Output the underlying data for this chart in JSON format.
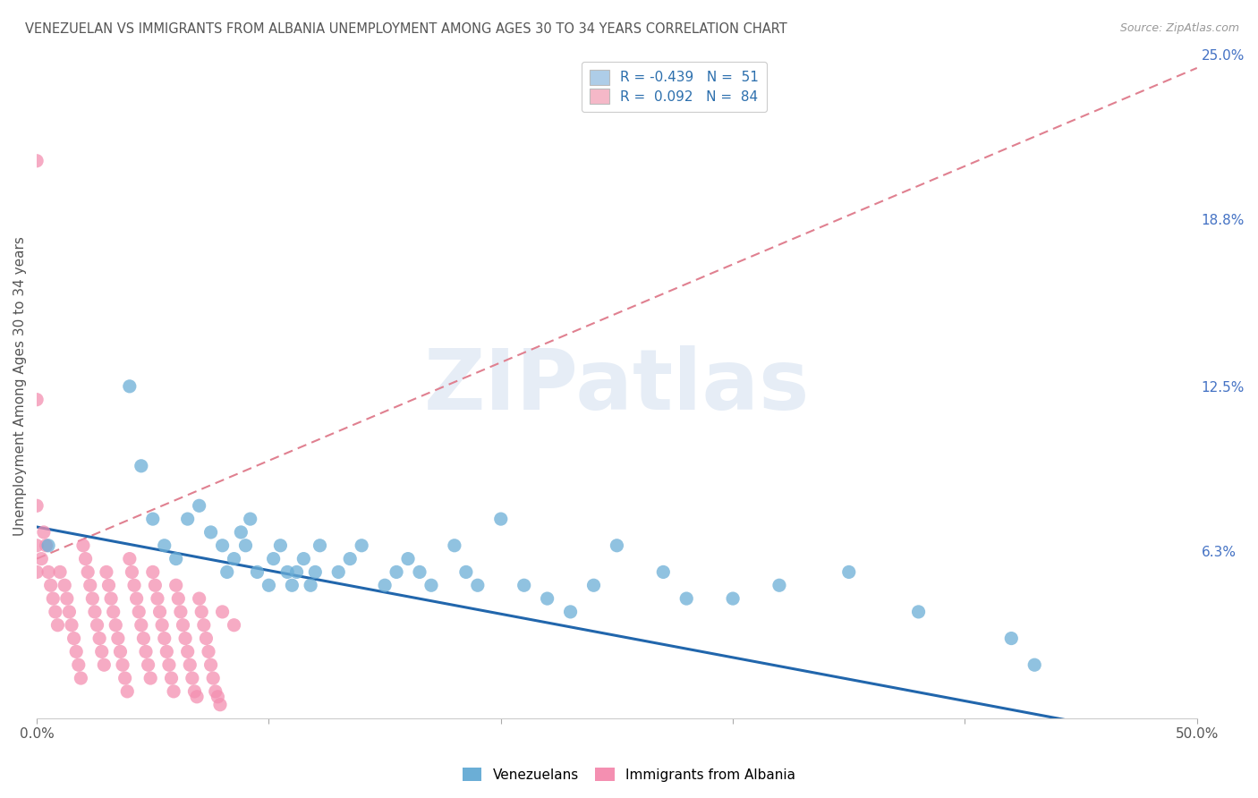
{
  "title": "VENEZUELAN VS IMMIGRANTS FROM ALBANIA UNEMPLOYMENT AMONG AGES 30 TO 34 YEARS CORRELATION CHART",
  "source": "Source: ZipAtlas.com",
  "ylabel": "Unemployment Among Ages 30 to 34 years",
  "xlim": [
    0.0,
    0.5
  ],
  "ylim": [
    0.0,
    0.25
  ],
  "xtick_labels": [
    "0.0%",
    "",
    "",
    "",
    "",
    "50.0%"
  ],
  "xtick_values": [
    0.0,
    0.1,
    0.2,
    0.3,
    0.4,
    0.5
  ],
  "ytick_right_labels": [
    "25.0%",
    "18.8%",
    "12.5%",
    "6.3%",
    ""
  ],
  "ytick_right_values": [
    0.25,
    0.188,
    0.125,
    0.063,
    0.0
  ],
  "watermark_text": "ZIPatlas",
  "legend_label_blue": "R = -0.439   N =  51",
  "legend_label_pink": "R =  0.092   N =  84",
  "legend_color_blue": "#aecde8",
  "legend_color_pink": "#f5b8c8",
  "venezuelan_color": "#6baed6",
  "albania_color": "#f48fb1",
  "venezuela_trend_color": "#2166ac",
  "albania_trend_color": "#e08090",
  "background_color": "#ffffff",
  "grid_color": "#cccccc",
  "title_color": "#555555",
  "right_tick_color": "#4472c4",
  "venezuelan_x": [
    0.005,
    0.04,
    0.045,
    0.05,
    0.055,
    0.06,
    0.065,
    0.07,
    0.075,
    0.08,
    0.082,
    0.085,
    0.088,
    0.09,
    0.092,
    0.095,
    0.1,
    0.102,
    0.105,
    0.108,
    0.11,
    0.112,
    0.115,
    0.118,
    0.12,
    0.122,
    0.13,
    0.135,
    0.14,
    0.15,
    0.155,
    0.16,
    0.165,
    0.17,
    0.18,
    0.185,
    0.19,
    0.2,
    0.21,
    0.22,
    0.23,
    0.24,
    0.25,
    0.27,
    0.28,
    0.3,
    0.32,
    0.35,
    0.38,
    0.42,
    0.43
  ],
  "venezuelan_y": [
    0.065,
    0.125,
    0.095,
    0.075,
    0.065,
    0.06,
    0.075,
    0.08,
    0.07,
    0.065,
    0.055,
    0.06,
    0.07,
    0.065,
    0.075,
    0.055,
    0.05,
    0.06,
    0.065,
    0.055,
    0.05,
    0.055,
    0.06,
    0.05,
    0.055,
    0.065,
    0.055,
    0.06,
    0.065,
    0.05,
    0.055,
    0.06,
    0.055,
    0.05,
    0.065,
    0.055,
    0.05,
    0.075,
    0.05,
    0.045,
    0.04,
    0.05,
    0.065,
    0.055,
    0.045,
    0.045,
    0.05,
    0.055,
    0.04,
    0.03,
    0.02
  ],
  "albania_x": [
    0.0,
    0.0,
    0.0,
    0.0,
    0.0,
    0.002,
    0.003,
    0.004,
    0.005,
    0.006,
    0.007,
    0.008,
    0.009,
    0.01,
    0.012,
    0.013,
    0.014,
    0.015,
    0.016,
    0.017,
    0.018,
    0.019,
    0.02,
    0.021,
    0.022,
    0.023,
    0.024,
    0.025,
    0.026,
    0.027,
    0.028,
    0.029,
    0.03,
    0.031,
    0.032,
    0.033,
    0.034,
    0.035,
    0.036,
    0.037,
    0.038,
    0.039,
    0.04,
    0.041,
    0.042,
    0.043,
    0.044,
    0.045,
    0.046,
    0.047,
    0.048,
    0.049,
    0.05,
    0.051,
    0.052,
    0.053,
    0.054,
    0.055,
    0.056,
    0.057,
    0.058,
    0.059,
    0.06,
    0.061,
    0.062,
    0.063,
    0.064,
    0.065,
    0.066,
    0.067,
    0.068,
    0.069,
    0.07,
    0.071,
    0.072,
    0.073,
    0.074,
    0.075,
    0.076,
    0.077,
    0.078,
    0.079,
    0.08,
    0.085
  ],
  "albania_y": [
    0.21,
    0.12,
    0.08,
    0.065,
    0.055,
    0.06,
    0.07,
    0.065,
    0.055,
    0.05,
    0.045,
    0.04,
    0.035,
    0.055,
    0.05,
    0.045,
    0.04,
    0.035,
    0.03,
    0.025,
    0.02,
    0.015,
    0.065,
    0.06,
    0.055,
    0.05,
    0.045,
    0.04,
    0.035,
    0.03,
    0.025,
    0.02,
    0.055,
    0.05,
    0.045,
    0.04,
    0.035,
    0.03,
    0.025,
    0.02,
    0.015,
    0.01,
    0.06,
    0.055,
    0.05,
    0.045,
    0.04,
    0.035,
    0.03,
    0.025,
    0.02,
    0.015,
    0.055,
    0.05,
    0.045,
    0.04,
    0.035,
    0.03,
    0.025,
    0.02,
    0.015,
    0.01,
    0.05,
    0.045,
    0.04,
    0.035,
    0.03,
    0.025,
    0.02,
    0.015,
    0.01,
    0.008,
    0.045,
    0.04,
    0.035,
    0.03,
    0.025,
    0.02,
    0.015,
    0.01,
    0.008,
    0.005,
    0.04,
    0.035
  ],
  "albania_trend_start_x": 0.0,
  "albania_trend_start_y": 0.06,
  "albania_trend_end_x": 0.5,
  "albania_trend_end_y": 0.245,
  "venezuela_trend_start_x": 0.0,
  "venezuela_trend_start_y": 0.072,
  "venezuela_trend_end_x": 0.5,
  "venezuela_trend_end_y": -0.01
}
